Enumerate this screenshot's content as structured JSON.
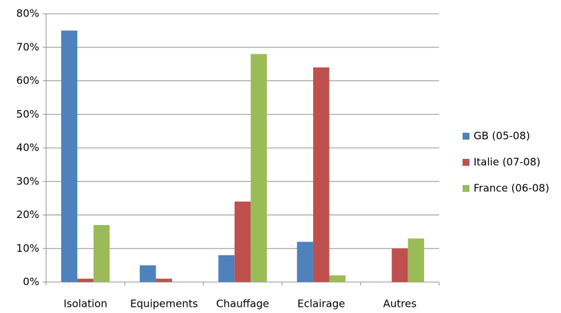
{
  "chart_data": {
    "type": "bar",
    "categories": [
      "Isolation",
      "Equipements",
      "Chauffage",
      "Eclairage",
      "Autres"
    ],
    "series": [
      {
        "name": "GB (05-08)",
        "color": "#4f81bd",
        "values": [
          75,
          5,
          8,
          12,
          0
        ]
      },
      {
        "name": "Italie (07-08)",
        "color": "#c0504d",
        "values": [
          1,
          1,
          24,
          64,
          10
        ]
      },
      {
        "name": "France (06-08)",
        "color": "#9bbb59",
        "values": [
          17,
          0,
          68,
          2,
          13
        ]
      }
    ],
    "ylim": [
      0,
      80
    ],
    "yticks": [
      {
        "value": 0,
        "label": "0%"
      },
      {
        "value": 10,
        "label": "10%"
      },
      {
        "value": 20,
        "label": "20%"
      },
      {
        "value": 30,
        "label": "30%"
      },
      {
        "value": 40,
        "label": "40%"
      },
      {
        "value": 50,
        "label": "50%"
      },
      {
        "value": 60,
        "label": "60%"
      },
      {
        "value": 70,
        "label": "70%"
      },
      {
        "value": 80,
        "label": "80%"
      }
    ],
    "grid": true,
    "legend": "right"
  }
}
